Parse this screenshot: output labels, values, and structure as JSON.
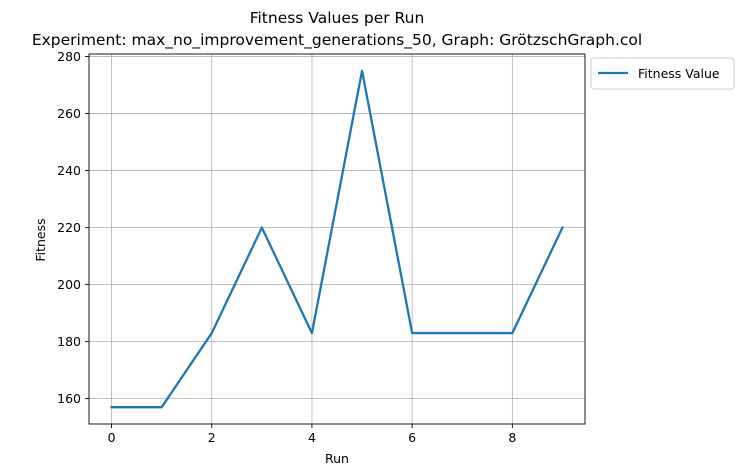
{
  "chart_data": {
    "type": "line",
    "title": "Fitness Values per Run",
    "subtitle": "Experiment: max_no_improvement_generations_50, Graph: GrötzschGraph.col",
    "xlabel": "Run",
    "ylabel": "Fitness",
    "xlim": [
      -0.45,
      9.45
    ],
    "ylim": [
      151.1,
      280.9
    ],
    "xticks": [
      0,
      2,
      4,
      6,
      8
    ],
    "yticks": [
      160,
      180,
      200,
      220,
      240,
      260,
      280
    ],
    "grid": true,
    "legend_position": "outside-top-right",
    "x": [
      0,
      1,
      2,
      3,
      4,
      5,
      6,
      7,
      8,
      9
    ],
    "series": [
      {
        "name": "Fitness Value",
        "color": "#1f77b4",
        "values": [
          157,
          157,
          183,
          220,
          183,
          275,
          183,
          183,
          183,
          220
        ]
      }
    ]
  }
}
